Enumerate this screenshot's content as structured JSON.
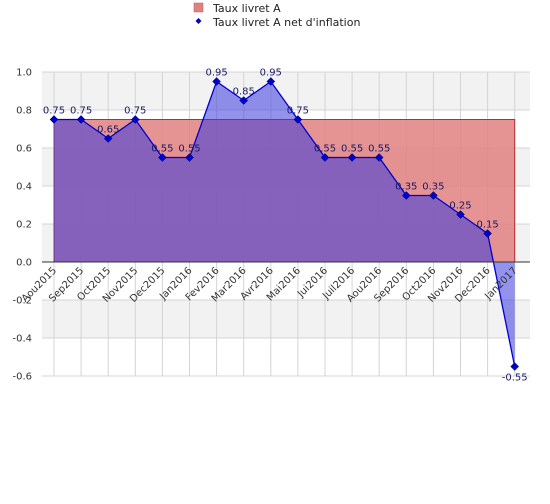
{
  "chart_data": {
    "type": "area",
    "categories": [
      "Aou2015",
      "Sep2015",
      "Oct2015",
      "Nov2015",
      "Dec2015",
      "Jan2016",
      "Fev2016",
      "Mar2016",
      "Avr2016",
      "Mai2016",
      "Jui2016",
      "Juil2016",
      "Aou2016",
      "Sep2016",
      "Oct2016",
      "Nov2016",
      "Dec2016",
      "Jan2017"
    ],
    "series": [
      {
        "name": "Taux livret A",
        "kind": "area",
        "color": "#e08080",
        "values": [
          0.75,
          0.75,
          0.75,
          0.75,
          0.75,
          0.75,
          0.75,
          0.75,
          0.75,
          0.75,
          0.75,
          0.75,
          0.75,
          0.75,
          0.75,
          0.75,
          0.75,
          0.75
        ]
      },
      {
        "name": "Taux livret A net d'inflation",
        "kind": "line-area",
        "color": "#0000cc",
        "values": [
          0.75,
          0.75,
          0.65,
          0.75,
          0.55,
          0.55,
          0.95,
          0.85,
          0.95,
          0.75,
          0.55,
          0.55,
          0.55,
          0.35,
          0.35,
          0.25,
          0.15,
          -0.55
        ],
        "labels": [
          "0.75",
          "0.75",
          "0.65",
          "0.75",
          "0.55",
          "0.55",
          "0.95",
          "0.85",
          "0.95",
          "0.75",
          "0.55",
          "0.55",
          "0.55",
          "0.35",
          "0.35",
          "0.25",
          "0.15",
          "-0.55"
        ]
      }
    ],
    "y_ticks": [
      "1.0",
      "0.8",
      "0.6",
      "0.4",
      "0.2",
      "0.0",
      "-0.2",
      "-0.4",
      "-0.6"
    ],
    "ylim": [
      -0.6,
      1.0
    ],
    "grid": true,
    "legend_position": "top"
  }
}
